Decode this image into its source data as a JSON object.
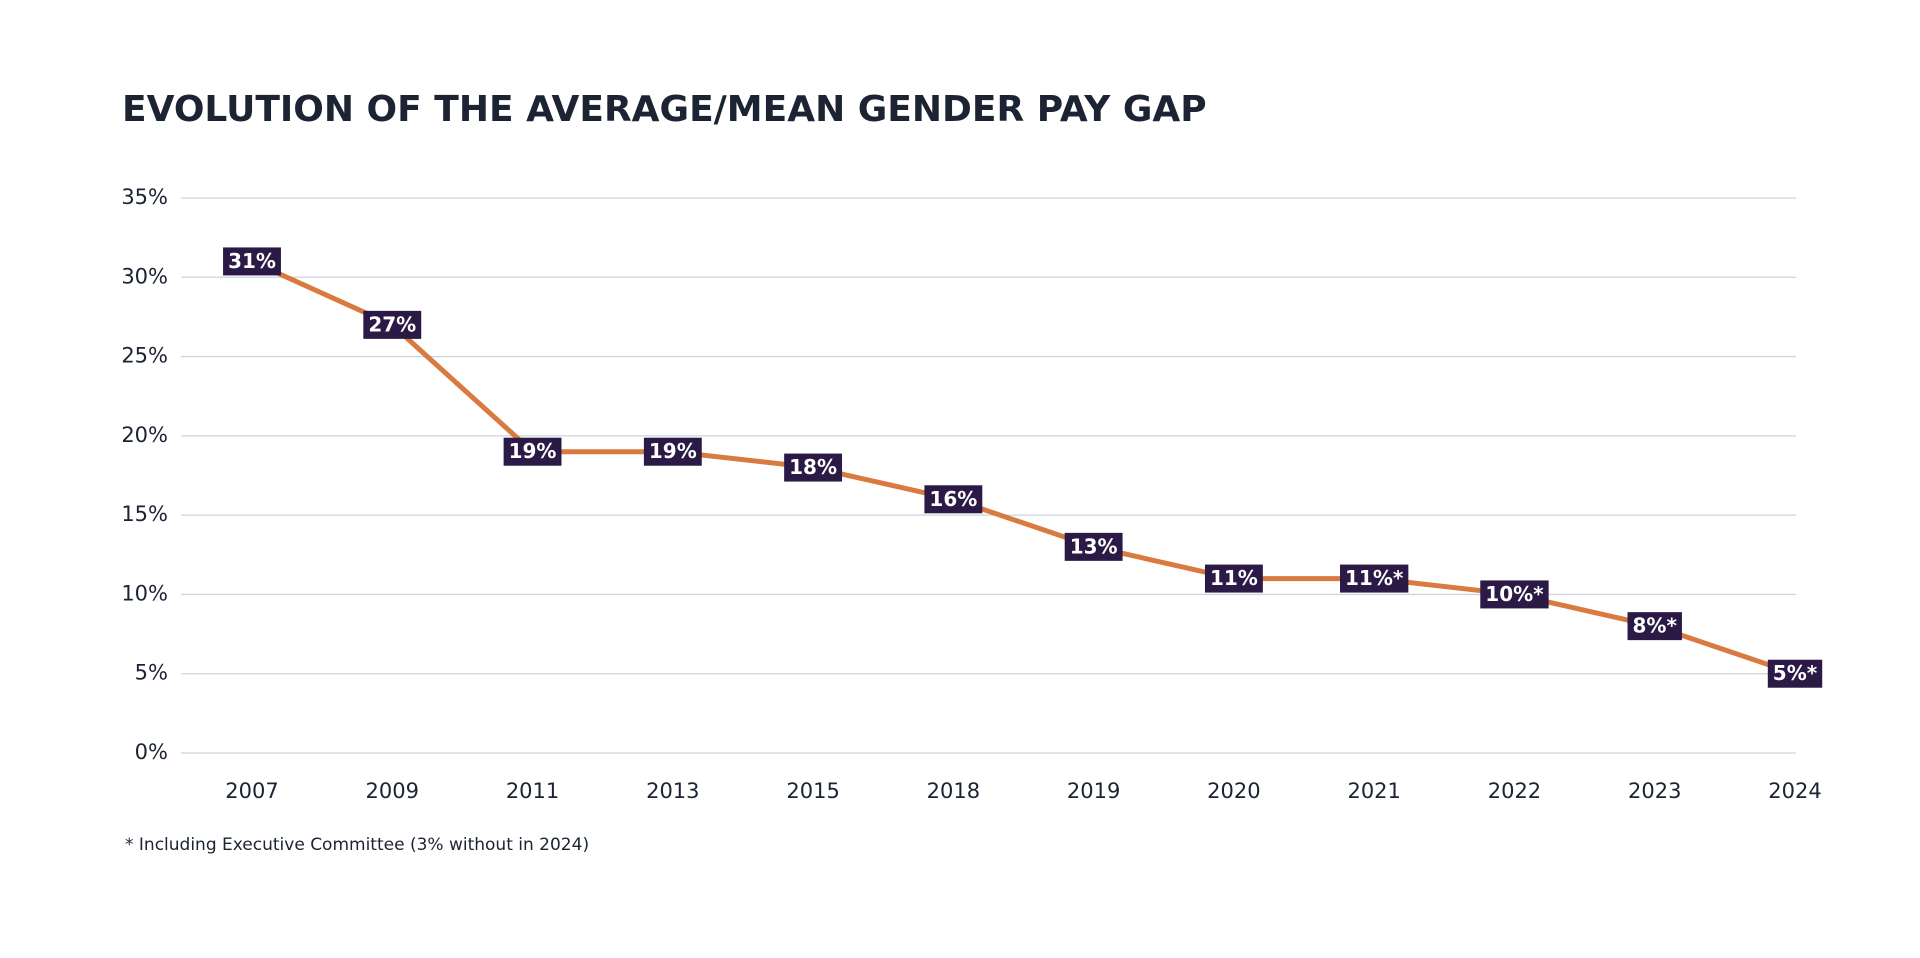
{
  "chart_data": {
    "type": "line",
    "title": "EVOLUTION OF THE AVERAGE/MEAN GENDER PAY GAP",
    "footnote": "* Including Executive Committee (3% without in 2024)",
    "categories": [
      "2007",
      "2009",
      "2011",
      "2013",
      "2015",
      "2018",
      "2019",
      "2020",
      "2021",
      "2022",
      "2023",
      "2024"
    ],
    "series": [
      {
        "name": "Average/mean gender pay gap",
        "color": "#d97a40",
        "values": [
          31,
          27,
          19,
          19,
          18,
          16,
          13,
          11,
          11,
          10,
          8,
          5
        ],
        "value_labels": [
          "31%",
          "27%",
          "19%",
          "19%",
          "18%",
          "16%",
          "13%",
          "11%",
          "11%*",
          "10%*",
          "8%*",
          "5%*"
        ]
      }
    ],
    "ylim": [
      0,
      35
    ],
    "yticks": [
      {
        "value": 0,
        "label": "0%"
      },
      {
        "value": 5,
        "label": "5%"
      },
      {
        "value": 10,
        "label": "10%"
      },
      {
        "value": 15,
        "label": "15%"
      },
      {
        "value": 20,
        "label": "20%"
      },
      {
        "value": 25,
        "label": "25%"
      },
      {
        "value": 30,
        "label": "30%"
      },
      {
        "value": 35,
        "label": "35%"
      }
    ],
    "grid": true,
    "label_box_color": "#2a1a45",
    "grid_color": "#c9d6de"
  }
}
